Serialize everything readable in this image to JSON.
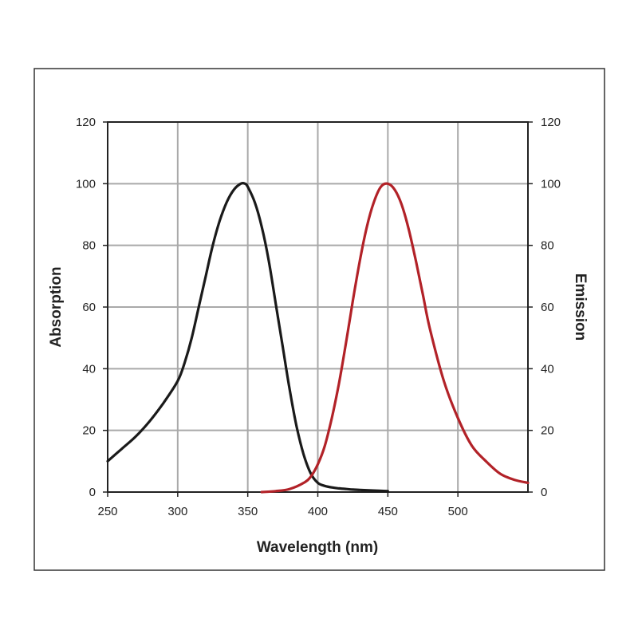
{
  "chart_data": {
    "type": "line",
    "title": "",
    "xlabel": "Wavelength (nm)",
    "ylabel": "Absorption",
    "y2label": "Emission",
    "xlim": [
      250,
      550
    ],
    "ylim": [
      0,
      120
    ],
    "y2lim": [
      0,
      120
    ],
    "x_ticks": [
      250,
      300,
      350,
      400,
      450,
      500
    ],
    "y_ticks": [
      0,
      20,
      40,
      60,
      80,
      100,
      120
    ],
    "y2_ticks": [
      0,
      20,
      40,
      60,
      80,
      100,
      120
    ],
    "grid": true,
    "legend": "none",
    "series": [
      {
        "axis": "left",
        "color": "#1a1a1a",
        "x": [
          250,
          260,
          270,
          280,
          290,
          300,
          305,
          310,
          315,
          320,
          325,
          330,
          335,
          340,
          345,
          348,
          350,
          355,
          360,
          365,
          370,
          375,
          380,
          385,
          390,
          395,
          400,
          405,
          410,
          415,
          420,
          425,
          430,
          440,
          450
        ],
        "y": [
          10,
          14,
          18,
          23,
          29,
          36,
          42,
          50,
          60,
          70,
          80,
          88,
          94,
          98,
          100,
          100,
          99,
          94,
          86,
          75,
          61,
          47,
          33,
          21,
          12,
          6,
          3,
          2,
          1.5,
          1.2,
          1,
          0.8,
          0.7,
          0.5,
          0.3
        ]
      },
      {
        "axis": "right",
        "color": "#b22228",
        "x": [
          360,
          370,
          380,
          390,
          395,
          400,
          405,
          410,
          415,
          420,
          425,
          430,
          435,
          440,
          445,
          450,
          455,
          460,
          465,
          470,
          475,
          480,
          490,
          500,
          510,
          520,
          530,
          540,
          550
        ],
        "y": [
          0,
          0.3,
          1,
          3,
          5,
          9,
          15,
          24,
          35,
          48,
          62,
          75,
          86,
          94,
          99,
          100,
          98,
          93,
          85,
          75,
          64,
          53,
          36,
          24,
          15,
          10,
          6,
          4,
          3
        ]
      }
    ]
  }
}
